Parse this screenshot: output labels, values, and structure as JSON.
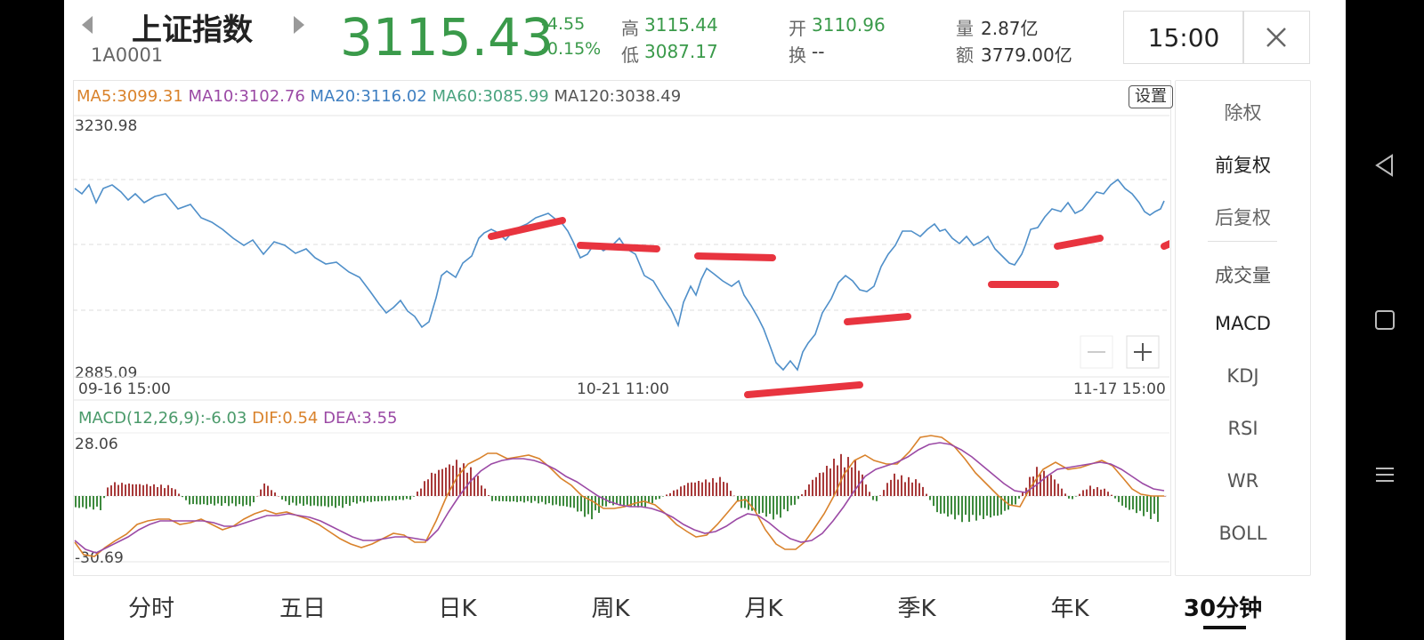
{
  "header": {
    "title": "上证指数",
    "code": "1A0001",
    "price": "3115.43",
    "change": "-4.55",
    "change_pct": "-0.15%",
    "high_label": "高",
    "high": "3115.44",
    "low_label": "低",
    "low": "3087.17",
    "open_label": "开",
    "open": "3110.96",
    "turnover_label": "换",
    "turnover": "--",
    "volume_label": "量",
    "volume": "2.87亿",
    "amount_label": "额",
    "amount": "3779.00亿",
    "time": "15:00"
  },
  "ma_legend": [
    {
      "text": "MA5:3099.31",
      "color": "#d9822b"
    },
    {
      "text": "MA10:3102.76",
      "color": "#9b4aa5"
    },
    {
      "text": "MA20:3116.02",
      "color": "#3f7fc1"
    },
    {
      "text": "MA60:3085.99",
      "color": "#4aa37f"
    },
    {
      "text": "MA120:3038.49",
      "color": "#555555"
    }
  ],
  "settings_label": "设置",
  "price_axis": {
    "max_label": "3230.98",
    "min_label": "2885.09"
  },
  "dates": {
    "left": "09-16 15:00",
    "mid": "10-21 11:00",
    "right": "11-17 15:00"
  },
  "macd_legend": {
    "macd": "MACD(12,26,9):-6.03",
    "dif": "DIF:0.54",
    "dea": "DEA:3.55",
    "macd_color": "#4a9a6a",
    "dif_color": "#d9822b",
    "dea_color": "#9b4aa5"
  },
  "macd_axis": {
    "max_label": "28.06",
    "min_label": "-30.69"
  },
  "side": {
    "items": [
      "除权",
      "前复权",
      "后复权",
      "成交量",
      "MACD",
      "KDJ",
      "RSI",
      "WR",
      "BOLL"
    ]
  },
  "tabs": [
    "分时",
    "五日",
    "日K",
    "周K",
    "月K",
    "季K",
    "年K",
    "30分钟"
  ],
  "colors": {
    "price_line": "#4f8fc9",
    "up_bar": "#a83a3a",
    "down_bar": "#3e8a3e",
    "annotation": "#e8343f",
    "accent_green": "#3a9a4a"
  }
}
